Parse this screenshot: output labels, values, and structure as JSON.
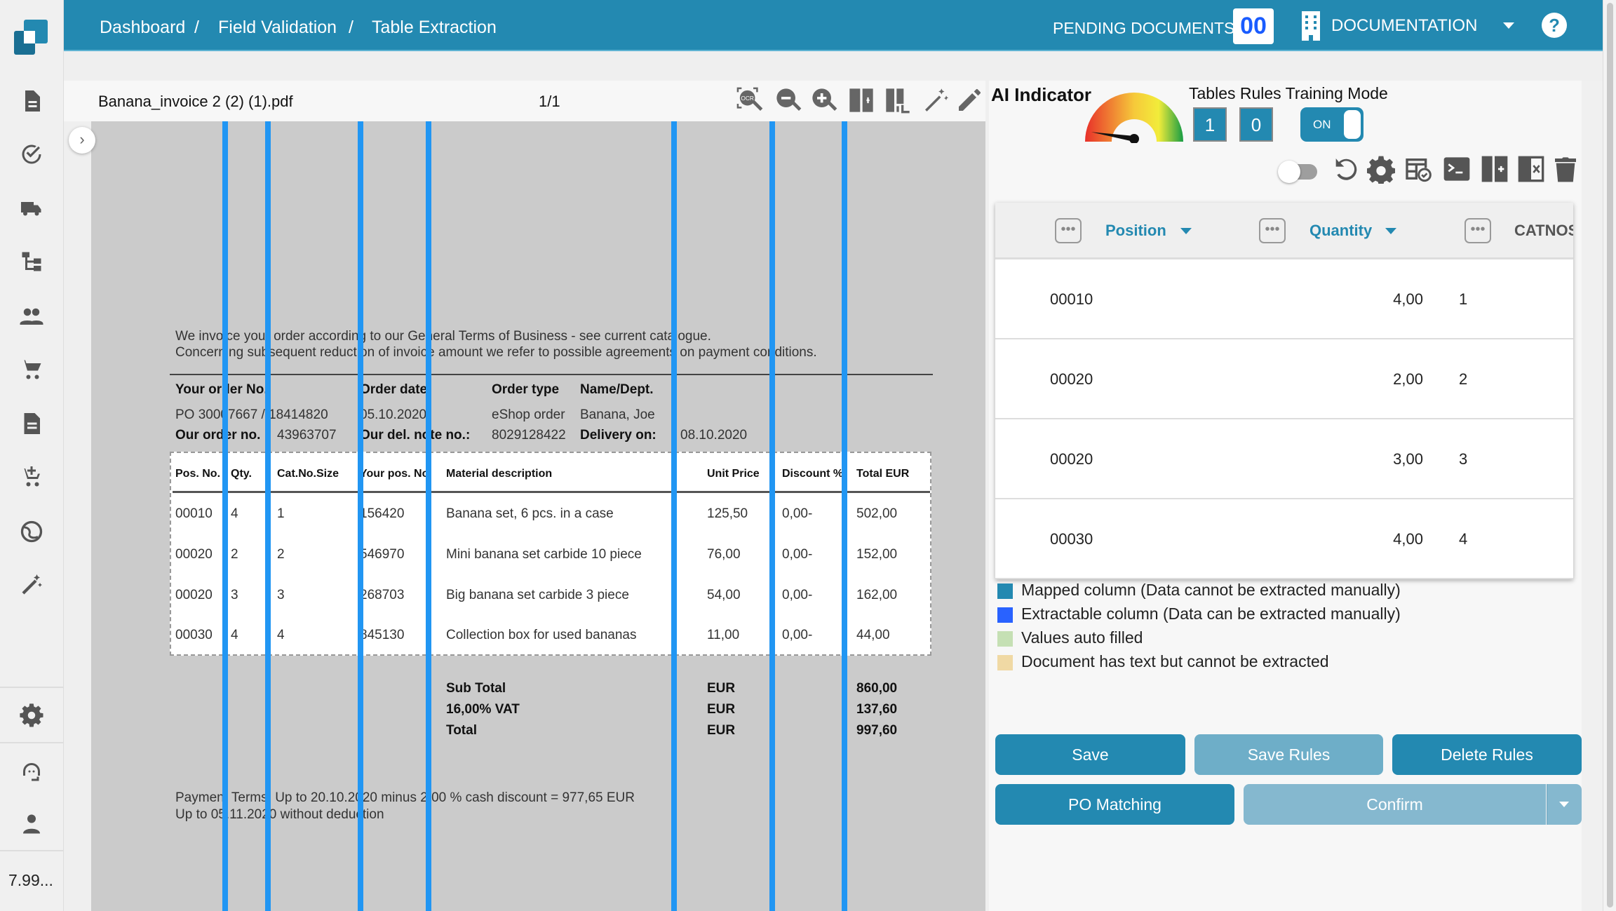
{
  "header": {
    "breadcrumb": [
      "Dashboard",
      "Field Validation",
      "Table Extraction"
    ],
    "separator": "/",
    "pending_label": "PENDING DOCUMENTS:",
    "pending_count": "00",
    "org": "DOCUMENTATION"
  },
  "sidebar": {
    "version": "7.99...",
    "icons": [
      "document-icon",
      "check-circle-icon",
      "truck-icon",
      "hierarchy-icon",
      "users-icon",
      "cart-icon",
      "invoice-icon",
      "cart-add-icon",
      "globe-icon",
      "magic-wand-icon",
      "gear-icon",
      "headset-icon",
      "user-icon"
    ]
  },
  "doc": {
    "filename": "Banana_invoice 2 (2) (1).pdf",
    "page": "1/1",
    "intro": [
      "We invoice your order according to our General Terms of Business - see current catalogue.",
      "Concerning subsequent reduction of invoice amount we refer to possible agreements on payment conditions."
    ],
    "order_headers": [
      "Your order No.",
      "Order date",
      "Order type",
      "Name/Dept."
    ],
    "order_values": [
      "PO 30007667 / 18414820",
      "05.10.2020",
      "eShop order",
      "Banana, Joe"
    ],
    "our_order_label": "Our order no.",
    "our_order_value": "43963707",
    "del_note_label": "Our del. note no.:",
    "del_note_value": "8029128422",
    "delivery_label": "Delivery on:",
    "delivery_value": "08.10.2020",
    "table_headers": [
      "Pos. No.",
      "Qty.",
      "Cat.No.Size",
      "Your pos. No.",
      "Material description",
      "Unit Price",
      "Discount %",
      "Total EUR"
    ],
    "table_rows": [
      [
        "00010",
        "4",
        "1",
        "156420",
        "Banana set, 6 pcs. in a case",
        "125,50",
        "0,00-",
        "502,00"
      ],
      [
        "00020",
        "2",
        "2",
        "546970",
        "Mini banana set carbide 10 piece",
        "76,00",
        "0,00-",
        "152,00"
      ],
      [
        "00020",
        "3",
        "3",
        "268703",
        "Big banana set carbide 3 piece",
        "54,00",
        "0,00-",
        "162,00"
      ],
      [
        "00030",
        "4",
        "4",
        "845130",
        "Collection box for used bananas",
        "11,00",
        "0,00-",
        "44,00"
      ]
    ],
    "totals": [
      [
        "Sub Total",
        "EUR",
        "860,00"
      ],
      [
        "16,00% VAT",
        "EUR",
        "137,60"
      ],
      [
        "Total",
        "EUR",
        "997,60"
      ]
    ],
    "payment": [
      "Payment Terms: Up to 20.10.2020 minus 2,00 % cash discount = 977,65 EUR",
      "Up to 05.11.2020 without deduction"
    ]
  },
  "right": {
    "ai_label": "AI Indicator",
    "ai_level": 0.05,
    "training_label": "Tables Rules Training Mode",
    "count_a": "1",
    "count_b": "0",
    "toggle_label": "ON",
    "columns": [
      "Position",
      "Quantity",
      "CATNOS"
    ],
    "more": "•••",
    "rows": [
      [
        "00010",
        "4,00",
        "1"
      ],
      [
        "00020",
        "2,00",
        "2"
      ],
      [
        "00020",
        "3,00",
        "3"
      ],
      [
        "00030",
        "4,00",
        "4"
      ]
    ],
    "legend": [
      {
        "label": "Mapped column (Data cannot be extracted manually)",
        "color": "#2389b1"
      },
      {
        "label": "Extractable column (Data can be extracted manually)",
        "color": "#2962ff"
      },
      {
        "label": "Values auto filled",
        "color": "#c5e0b4"
      },
      {
        "label": "Document has text but cannot be extracted",
        "color": "#f0d9a4"
      }
    ],
    "buttons": {
      "save": "Save",
      "save_rules": "Save Rules",
      "delete_rules": "Delete Rules",
      "po_matching": "PO Matching",
      "confirm": "Confirm"
    }
  },
  "colors": {
    "primary": "#2389b1",
    "column_line": "#2196f3"
  }
}
